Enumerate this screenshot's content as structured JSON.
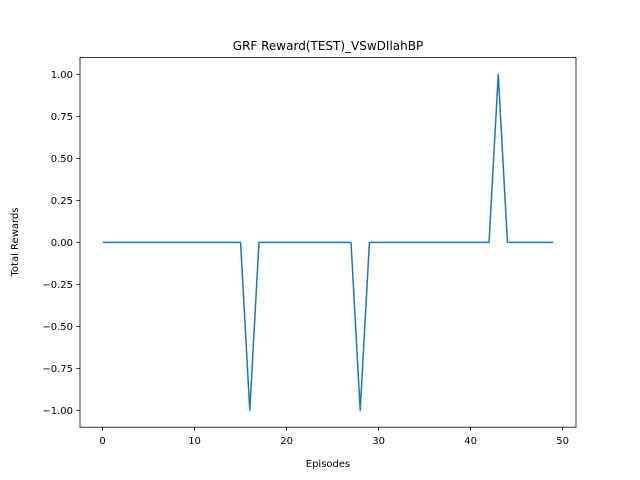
{
  "chart_data": {
    "type": "line",
    "title": "GRF Reward(TEST)_VSwDIlahBP",
    "xlabel": "Episodes",
    "ylabel": "Total Rewards",
    "xlim": [
      -2.45,
      51.45
    ],
    "ylim": [
      -1.1,
      1.1
    ],
    "xticks": [
      0,
      10,
      20,
      30,
      40,
      50
    ],
    "yticks": [
      -1.0,
      -0.75,
      -0.5,
      -0.25,
      0.0,
      0.25,
      0.5,
      0.75,
      1.0
    ],
    "xtick_labels": [
      "0",
      "10",
      "20",
      "30",
      "40",
      "50"
    ],
    "ytick_labels": [
      "−1.00",
      "−0.75",
      "−0.50",
      "−0.25",
      "0.00",
      "0.25",
      "0.50",
      "0.75",
      "1.00"
    ],
    "grid": false,
    "line_color": "#1f77b4",
    "series": [
      {
        "x": [
          0,
          1,
          2,
          3,
          4,
          5,
          6,
          7,
          8,
          9,
          10,
          11,
          12,
          13,
          14,
          15,
          16,
          17,
          18,
          19,
          20,
          21,
          22,
          23,
          24,
          25,
          26,
          27,
          28,
          29,
          30,
          31,
          32,
          33,
          34,
          35,
          36,
          37,
          38,
          39,
          40,
          41,
          42,
          43,
          44,
          45,
          46,
          47,
          48,
          49
        ],
        "values": [
          0,
          0,
          0,
          0,
          0,
          0,
          0,
          0,
          0,
          0,
          0,
          0,
          0,
          0,
          0,
          0,
          -1,
          0,
          0,
          0,
          0,
          0,
          0,
          0,
          0,
          0,
          0,
          0,
          -1,
          0,
          0,
          0,
          0,
          0,
          0,
          0,
          0,
          0,
          0,
          0,
          0,
          0,
          0,
          1,
          0,
          0,
          0,
          0,
          0,
          0
        ]
      }
    ]
  }
}
